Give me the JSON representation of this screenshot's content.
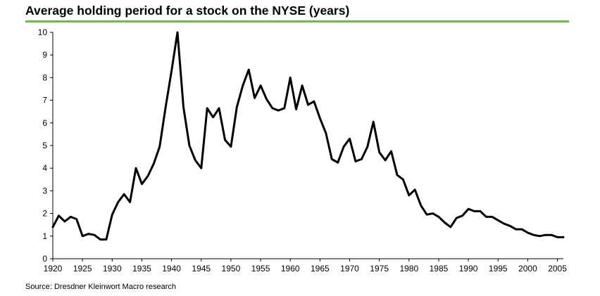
{
  "title": "Average holding period for a stock on the NYSE (years)",
  "source": "Source: Dresdner Kleinwort Macro research",
  "colors": {
    "rule": "#6abf3c",
    "line": "#000000",
    "axis": "#000000"
  },
  "chart_data": {
    "type": "line",
    "title": "Average holding period for a stock on the NYSE (years)",
    "xlabel": "",
    "ylabel": "",
    "xlim": [
      1920,
      2006
    ],
    "ylim": [
      0,
      10
    ],
    "x_ticks": [
      1920,
      1925,
      1930,
      1935,
      1940,
      1945,
      1950,
      1955,
      1960,
      1965,
      1970,
      1975,
      1980,
      1985,
      1990,
      1995,
      2000,
      2005
    ],
    "y_ticks": [
      0,
      1,
      2,
      3,
      4,
      5,
      6,
      7,
      8,
      9,
      10
    ],
    "grid": false,
    "legend": "none",
    "series": [
      {
        "x": [
          1920,
          1921,
          1922,
          1923,
          1924,
          1925,
          1926,
          1927,
          1928,
          1929,
          1930,
          1931,
          1932,
          1933,
          1934,
          1935,
          1936,
          1937,
          1938,
          1939,
          1940,
          1941,
          1942,
          1943,
          1944,
          1945,
          1946,
          1947,
          1948,
          1949,
          1950,
          1951,
          1952,
          1953,
          1954,
          1955,
          1956,
          1957,
          1958,
          1959,
          1960,
          1961,
          1962,
          1963,
          1964,
          1965,
          1966,
          1967,
          1968,
          1969,
          1970,
          1971,
          1972,
          1973,
          1974,
          1975,
          1976,
          1977,
          1978,
          1979,
          1980,
          1981,
          1982,
          1983,
          1984,
          1985,
          1986,
          1987,
          1988,
          1989,
          1990,
          1991,
          1992,
          1993,
          1994,
          1995,
          1996,
          1997,
          1998,
          1999,
          2000,
          2001,
          2002,
          2003,
          2004,
          2005,
          2006
        ],
        "values": [
          1.4,
          1.9,
          1.65,
          1.85,
          1.75,
          1.0,
          1.1,
          1.05,
          0.85,
          0.85,
          1.95,
          2.5,
          2.85,
          2.5,
          4.0,
          3.3,
          3.65,
          4.2,
          4.95,
          6.7,
          8.3,
          10.0,
          6.7,
          5.0,
          4.35,
          4.0,
          6.65,
          6.25,
          6.65,
          5.25,
          4.95,
          6.7,
          7.65,
          8.35,
          7.1,
          7.65,
          7.05,
          6.65,
          6.55,
          6.65,
          8.0,
          6.6,
          7.65,
          6.8,
          6.95,
          6.2,
          5.55,
          4.4,
          4.25,
          4.95,
          5.3,
          4.3,
          4.4,
          4.95,
          6.05,
          4.7,
          4.35,
          4.75,
          3.7,
          3.5,
          2.8,
          3.05,
          2.35,
          1.95,
          2.0,
          1.85,
          1.6,
          1.4,
          1.8,
          1.9,
          2.2,
          2.1,
          2.1,
          1.85,
          1.85,
          1.7,
          1.55,
          1.45,
          1.3,
          1.3,
          1.15,
          1.05,
          1.0,
          1.05,
          1.05,
          0.95,
          0.95
        ]
      }
    ]
  }
}
